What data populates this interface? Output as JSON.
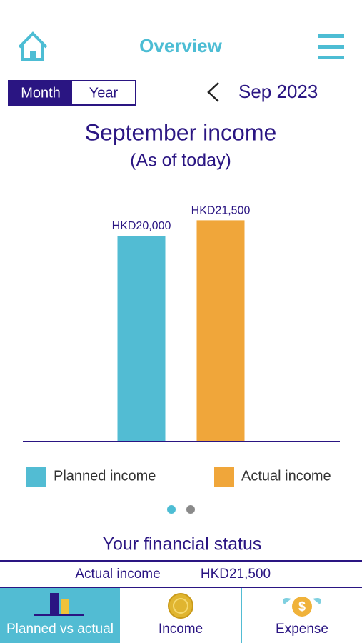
{
  "header": {
    "title": "Overview"
  },
  "toggle": {
    "options": [
      "Month",
      "Year"
    ],
    "selected": "Month"
  },
  "period": "Sep 2023",
  "chart_data": {
    "type": "bar",
    "title": "September income",
    "subtitle": "(As of today)",
    "categories": [
      "Planned income",
      "Actual income"
    ],
    "values": [
      20000,
      21500
    ],
    "value_labels": [
      "HKD20,000",
      "HKD21,500"
    ],
    "colors": [
      "#52bcd3",
      "#f0a63a"
    ]
  },
  "status": {
    "title": "Your financial status",
    "rows": [
      [
        "Actual income",
        "HKD21,500"
      ]
    ]
  },
  "tabs": [
    "Planned vs actual",
    "Income",
    "Expense"
  ]
}
